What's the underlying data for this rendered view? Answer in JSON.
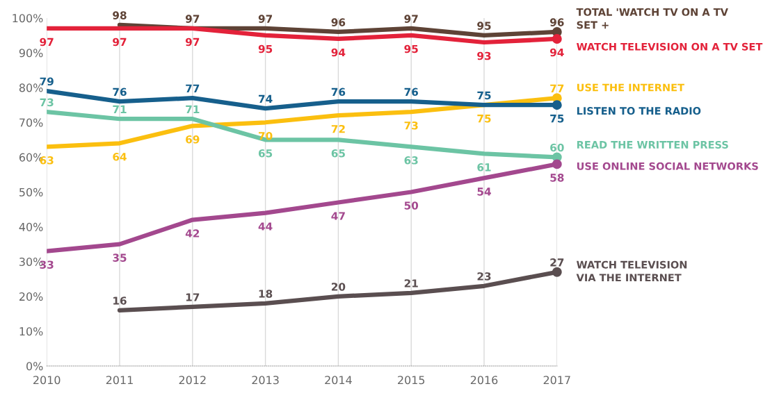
{
  "chart_data": {
    "type": "line",
    "x": [
      2010,
      2011,
      2012,
      2013,
      2014,
      2015,
      2016,
      2017
    ],
    "series": [
      {
        "name": "TOTAL 'WATCH TV ON A TV\nSET +",
        "color": "#5e4336",
        "values": [
          null,
          98,
          97,
          97,
          96,
          97,
          95,
          96
        ]
      },
      {
        "name": "WATCH TELEVISION ON A TV SET",
        "color": "#e3223a",
        "values": [
          97,
          97,
          97,
          95,
          94,
          95,
          93,
          94
        ]
      },
      {
        "name": "USE THE INTERNET",
        "color": "#fbbf0f",
        "values": [
          63,
          64,
          69,
          70,
          72,
          73,
          75,
          77
        ]
      },
      {
        "name": "LISTEN TO THE RADIO",
        "color": "#165f8c",
        "values": [
          79,
          76,
          77,
          74,
          76,
          76,
          75,
          75
        ]
      },
      {
        "name": "READ THE WRITTEN PRESS",
        "color": "#6cc4a4",
        "values": [
          73,
          71,
          71,
          65,
          65,
          63,
          61,
          60
        ]
      },
      {
        "name": "USE ONLINE SOCIAL NETWORKS",
        "color": "#a3488e",
        "values": [
          33,
          35,
          42,
          44,
          47,
          50,
          54,
          58
        ]
      },
      {
        "name": "WATCH TELEVISION\nVIA THE INTERNET",
        "color": "#5a4e50",
        "values": [
          null,
          16,
          17,
          18,
          20,
          21,
          23,
          27
        ]
      }
    ],
    "xlim": [
      2010,
      2017
    ],
    "xticks": [
      2010,
      2011,
      2012,
      2013,
      2014,
      2015,
      2016,
      2017
    ],
    "ylim": [
      0,
      100
    ],
    "yticks": [
      {
        "value": 0,
        "label": "0%"
      },
      {
        "value": 10,
        "label": "10%"
      },
      {
        "value": 20,
        "label": "20%"
      },
      {
        "value": 30,
        "label": "30%"
      },
      {
        "value": 40,
        "label": "40%"
      },
      {
        "value": 50,
        "label": "50%"
      },
      {
        "value": 60,
        "label": "60%"
      },
      {
        "value": 70,
        "label": "70%"
      },
      {
        "value": 80,
        "label": "80%"
      },
      {
        "value": 90,
        "label": "90%"
      },
      {
        "value": 100,
        "label": "100%"
      }
    ],
    "grid": "x",
    "data_labels": true,
    "legend": "right",
    "line_style": "solid"
  }
}
